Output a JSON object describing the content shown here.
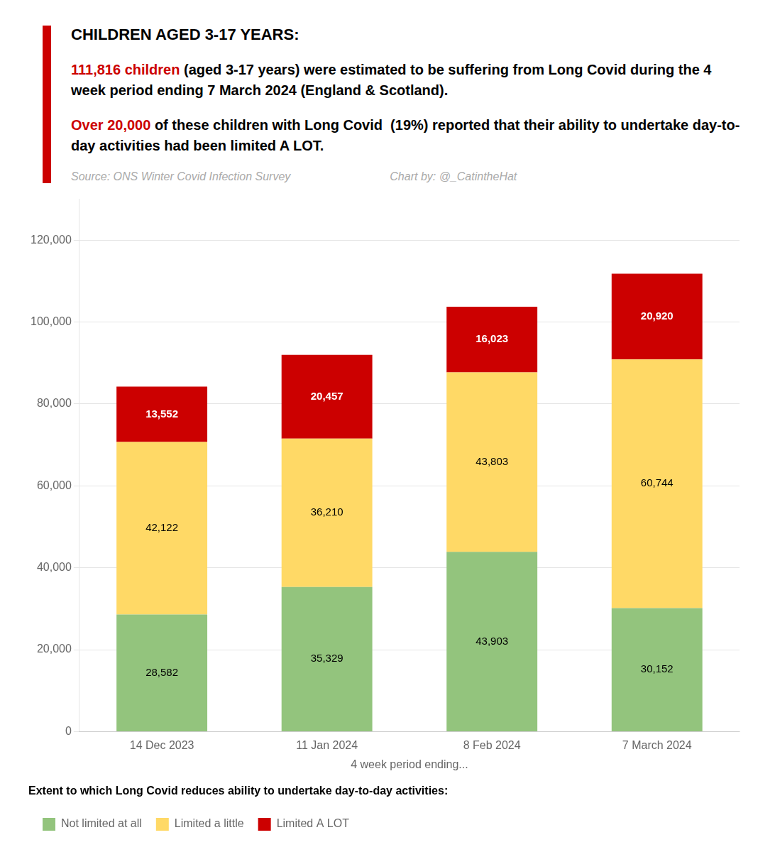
{
  "chart_data": {
    "type": "bar",
    "stacked": true,
    "title": "CHILDREN AGED 3-17 YEARS:",
    "annotations": [
      [
        {
          "text": "111,816 children",
          "color": "#CC0000"
        },
        {
          "text": " (aged 3-17 years) were estimated to be suffering from Long Covid during the 4 week period ending 7 March 2024 (England & Scotland).",
          "color": "#000000"
        }
      ],
      [
        {
          "text": "Over 20,000",
          "color": "#CC0000"
        },
        {
          "text": " of these children with Long Covid  (19%) reported that their ability to undertake day-to-day activities had been limited A LOT.",
          "color": "#000000"
        }
      ],
      [
        {
          "text": "Source: ONS Winter Covid Infection Survey",
          "color": "#AAAAAA"
        },
        {
          "text": "Chart by: @_CatintheHat",
          "color": "#AAAAAA"
        }
      ]
    ],
    "x_label": "4 week period ending...",
    "categories": [
      "14 Dec 2023",
      "11 Jan 2024",
      "8 Feb 2024",
      "7 March 2024"
    ],
    "series": [
      {
        "name": "Not limited at all",
        "color": "#93C47D",
        "values": [
          28582,
          35329,
          43903,
          30152
        ],
        "value_labels": [
          "28,582",
          "35,329",
          "43,903",
          "30,152"
        ]
      },
      {
        "name": "Limited a little",
        "color": "#FFD966",
        "values": [
          42122,
          36210,
          43803,
          60744
        ],
        "value_labels": [
          "42,122",
          "36,210",
          "43,803",
          "60,744"
        ]
      },
      {
        "name": "Limited A LOT",
        "color": "#CC0000",
        "values": [
          13552,
          20457,
          16023,
          20920
        ],
        "value_labels": [
          "13,552",
          "20,457",
          "16,023",
          "20,920"
        ]
      }
    ],
    "ylim": [
      0,
      130000
    ],
    "yticks": [
      0,
      {
        "value": 20000,
        "label": "20,000"
      },
      {
        "value": 40000,
        "label": "40,000"
      },
      {
        "value": 60000,
        "label": "60,000"
      },
      {
        "value": 80000,
        "label": "80,000"
      },
      {
        "value": 100000,
        "label": "100,000"
      },
      {
        "value": 120000,
        "label": "120,000"
      }
    ],
    "grid": true,
    "legend": "bottom",
    "legend_title": "Extent to which Long Covid reduces ability to undertake day-to-day activities:",
    "data_labels": true
  }
}
